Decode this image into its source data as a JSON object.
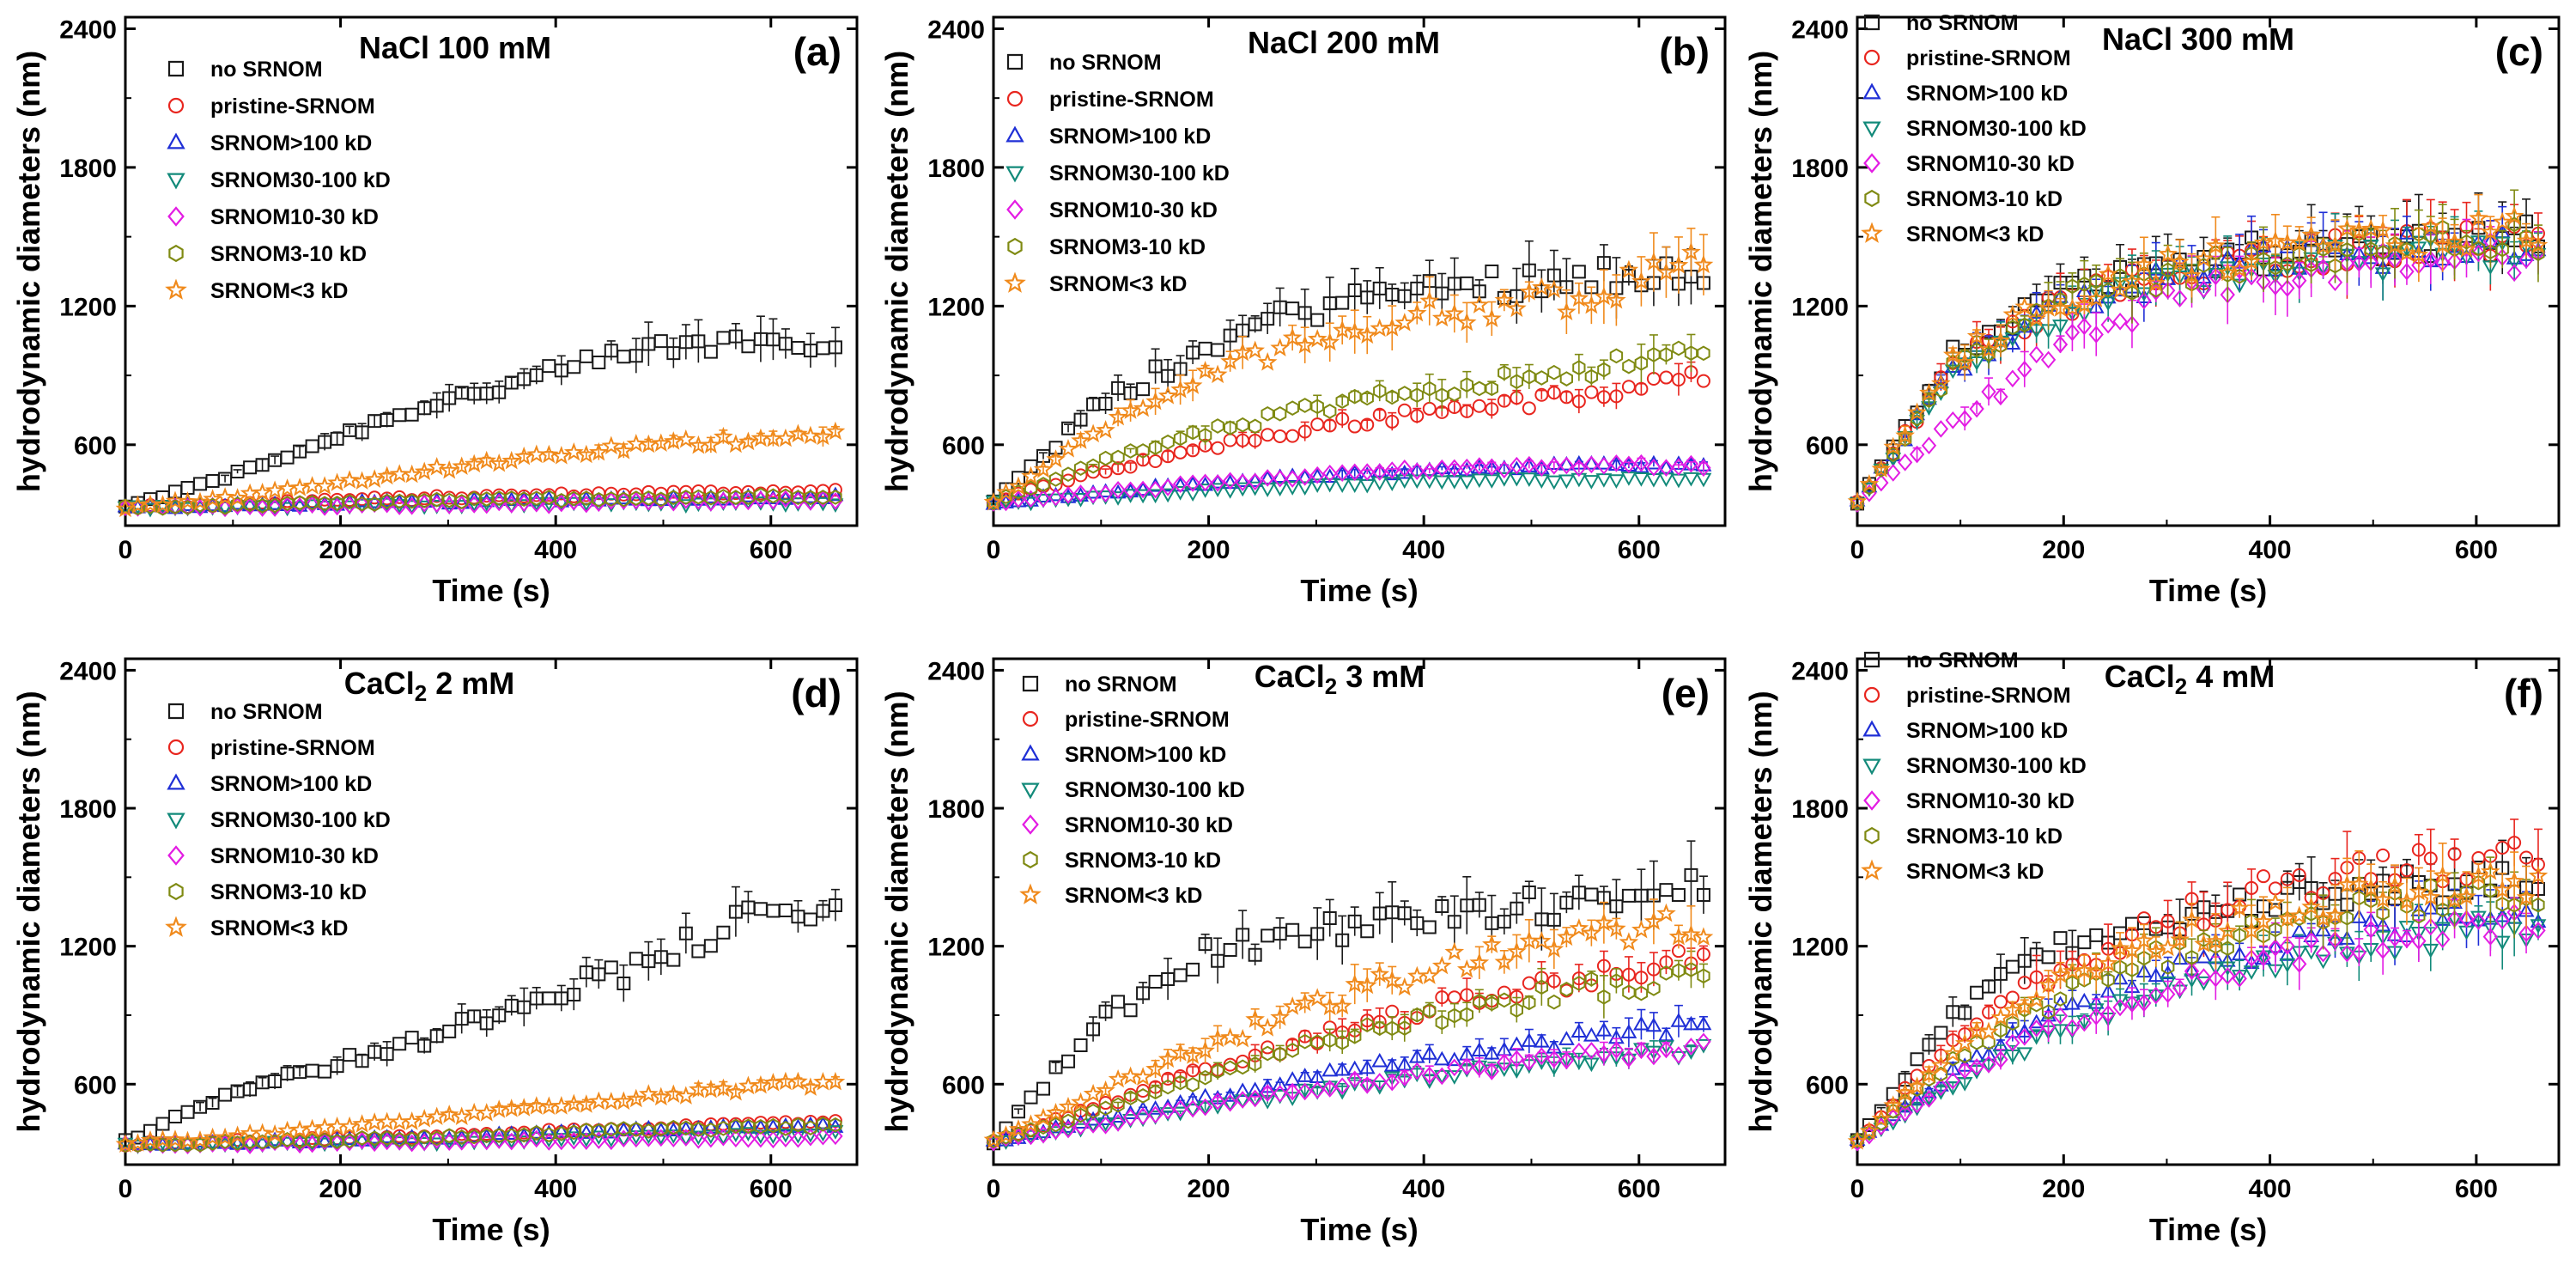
{
  "figure": {
    "series_styles": [
      {
        "name": "no SRNOM",
        "color": "#1a1a1a",
        "marker": "square"
      },
      {
        "name": "pristine-SRNOM",
        "color": "#e8261f",
        "marker": "circle"
      },
      {
        "name": "SRNOM>100 kD",
        "color": "#1f2fd6",
        "marker": "triangle-up"
      },
      {
        "name": "SRNOM30-100 kD",
        "color": "#128a7a",
        "marker": "triangle-down"
      },
      {
        "name": "SRNOM10-30 kD",
        "color": "#e31ce3",
        "marker": "diamond"
      },
      {
        "name": "SRNOM3-10 kD",
        "color": "#7f8a12",
        "marker": "hexagon"
      },
      {
        "name": "SRNOM<3 kD",
        "color": "#f08a1c",
        "marker": "star"
      }
    ]
  },
  "chart_data": [
    {
      "id": "a",
      "type": "scatter",
      "title": "NaCl 100 mM",
      "panel_label": "(a)",
      "xlabel": "Time (s)",
      "ylabel": "hydrodynamic diameters (nm)",
      "xlim": [
        0,
        680
      ],
      "ylim": [
        250,
        2450
      ],
      "xticks": [
        0,
        200,
        400,
        600
      ],
      "yticks": [
        600,
        1200,
        1800,
        2400
      ],
      "x_range": [
        0,
        660
      ],
      "series": [
        {
          "name": "no SRNOM",
          "values": [
            330,
            460,
            620,
            780,
            880,
            1000,
            1050,
            1060
          ],
          "start": 330
        },
        {
          "name": "pristine-SRNOM",
          "values": [
            330,
            340,
            360,
            370,
            380,
            390,
            395,
            400
          ],
          "start": 330
        },
        {
          "name": "SRNOM>100 kD",
          "values": [
            330,
            335,
            345,
            350,
            360,
            365,
            370,
            375
          ],
          "start": 330
        },
        {
          "name": "SRNOM30-100 kD",
          "values": [
            330,
            330,
            335,
            340,
            345,
            345,
            350,
            350
          ],
          "start": 330
        },
        {
          "name": "SRNOM10-30 kD",
          "values": [
            330,
            330,
            335,
            340,
            345,
            350,
            355,
            360
          ],
          "start": 330
        },
        {
          "name": "SRNOM3-10 kD",
          "values": [
            330,
            335,
            345,
            355,
            365,
            370,
            375,
            380
          ],
          "start": 330
        },
        {
          "name": "SRNOM<3 kD",
          "values": [
            330,
            370,
            430,
            490,
            540,
            590,
            620,
            660
          ],
          "start": 330
        }
      ]
    },
    {
      "id": "b",
      "type": "scatter",
      "title": "NaCl 200 mM",
      "panel_label": "(b)",
      "xlabel": "Time (s)",
      "ylabel": "hydrodynamic diameters (nm)",
      "xlim": [
        0,
        680
      ],
      "ylim": [
        250,
        2450
      ],
      "xticks": [
        0,
        200,
        400,
        600
      ],
      "yticks": [
        600,
        1200,
        1800,
        2400
      ],
      "x_range": [
        0,
        660
      ],
      "series": [
        {
          "name": "no SRNOM",
          "values": [
            350,
            760,
            1000,
            1180,
            1260,
            1300,
            1340,
            1360
          ],
          "start": 350
        },
        {
          "name": "pristine-SRNOM",
          "values": [
            350,
            480,
            580,
            660,
            730,
            780,
            810,
            900
          ],
          "start": 350
        },
        {
          "name": "SRNOM>100 kD",
          "values": [
            350,
            390,
            430,
            460,
            480,
            500,
            510,
            510
          ],
          "start": 350
        },
        {
          "name": "SRNOM30-100 kD",
          "values": [
            350,
            370,
            400,
            420,
            440,
            450,
            450,
            460
          ],
          "start": 350
        },
        {
          "name": "SRNOM10-30 kD",
          "values": [
            350,
            390,
            430,
            460,
            490,
            500,
            510,
            510
          ],
          "start": 350
        },
        {
          "name": "SRNOM3-10 kD",
          "values": [
            350,
            520,
            640,
            740,
            820,
            880,
            940,
            1000
          ],
          "start": 350
        },
        {
          "name": "SRNOM<3 kD",
          "values": [
            350,
            650,
            880,
            1050,
            1150,
            1200,
            1250,
            1420
          ],
          "start": 350
        }
      ]
    },
    {
      "id": "c",
      "type": "scatter",
      "title": "NaCl 300 mM",
      "panel_label": "(c)",
      "xlabel": "Time (s)",
      "ylabel": "hydrodynamic diameters (nm)",
      "xlim": [
        0,
        680
      ],
      "ylim": [
        250,
        2450
      ],
      "xticks": [
        0,
        200,
        400,
        600
      ],
      "yticks": [
        600,
        1200,
        1800,
        2400
      ],
      "x_range": [
        0,
        660
      ],
      "series": [
        {
          "name": "no SRNOM",
          "values": [
            350,
            1000,
            1250,
            1350,
            1420,
            1460,
            1490,
            1510
          ],
          "start": 350
        },
        {
          "name": "pristine-SRNOM",
          "values": [
            350,
            950,
            1200,
            1320,
            1400,
            1440,
            1480,
            1500
          ],
          "start": 350
        },
        {
          "name": "SRNOM>100 kD",
          "values": [
            350,
            930,
            1180,
            1300,
            1380,
            1420,
            1460,
            1480
          ],
          "start": 350
        },
        {
          "name": "SRNOM30-100 kD",
          "values": [
            350,
            900,
            1150,
            1280,
            1350,
            1400,
            1430,
            1450
          ],
          "start": 350
        },
        {
          "name": "SRNOM10-30 kD",
          "values": [
            350,
            700,
            1000,
            1200,
            1300,
            1360,
            1400,
            1420
          ],
          "start": 350
        },
        {
          "name": "SRNOM3-10 kD",
          "values": [
            350,
            950,
            1200,
            1320,
            1400,
            1440,
            1470,
            1490
          ],
          "start": 350
        },
        {
          "name": "SRNOM<3 kD",
          "values": [
            350,
            970,
            1220,
            1340,
            1420,
            1460,
            1500,
            1520
          ],
          "start": 350
        }
      ]
    },
    {
      "id": "d",
      "type": "scatter",
      "title": "CaCl2 2 mM",
      "title_main": "CaCl",
      "title_sub": "2",
      "title_rest": " 2 mM",
      "panel_label": "(d)",
      "xlabel": "Time (s)",
      "ylabel": "hydrodynamic diameters (nm)",
      "xlim": [
        0,
        680
      ],
      "ylim": [
        250,
        2450
      ],
      "xticks": [
        0,
        200,
        400,
        600
      ],
      "yticks": [
        600,
        1200,
        1800,
        2400
      ],
      "x_range": [
        0,
        660
      ],
      "series": [
        {
          "name": "no SRNOM",
          "values": [
            350,
            560,
            680,
            800,
            980,
            1100,
            1300,
            1350
          ],
          "start": 350
        },
        {
          "name": "pristine-SRNOM",
          "values": [
            340,
            350,
            360,
            370,
            390,
            410,
            420,
            440
          ],
          "start": 340
        },
        {
          "name": "SRNOM>100 kD",
          "values": [
            340,
            345,
            355,
            365,
            380,
            400,
            410,
            420
          ],
          "start": 340
        },
        {
          "name": "SRNOM30-100 kD",
          "values": [
            340,
            340,
            345,
            350,
            360,
            370,
            380,
            390
          ],
          "start": 340
        },
        {
          "name": "SRNOM10-30 kD",
          "values": [
            340,
            340,
            345,
            350,
            355,
            360,
            365,
            370
          ],
          "start": 340
        },
        {
          "name": "SRNOM3-10 kD",
          "values": [
            340,
            345,
            355,
            370,
            385,
            400,
            410,
            420
          ],
          "start": 340
        },
        {
          "name": "SRNOM<3 kD",
          "values": [
            340,
            370,
            410,
            450,
            500,
            540,
            580,
            610
          ],
          "start": 340
        }
      ]
    },
    {
      "id": "e",
      "type": "scatter",
      "title": "CaCl2 3 mM",
      "title_main": "CaCl",
      "title_sub": "2",
      "title_rest": " 3 mM",
      "panel_label": "(e)",
      "xlabel": "Time (s)",
      "ylabel": "hydrodynamic diameters (nm)",
      "xlim": [
        0,
        680
      ],
      "ylim": [
        250,
        2450
      ],
      "xticks": [
        0,
        200,
        400,
        600
      ],
      "yticks": [
        600,
        1200,
        1800,
        2400
      ],
      "x_range": [
        0,
        660
      ],
      "series": [
        {
          "name": "no SRNOM",
          "values": [
            350,
            850,
            1150,
            1250,
            1300,
            1350,
            1420,
            1450
          ],
          "start": 350
        },
        {
          "name": "pristine-SRNOM",
          "values": [
            350,
            500,
            650,
            780,
            900,
            1000,
            1080,
            1150
          ],
          "start": 350
        },
        {
          "name": "SRNOM>100 kD",
          "values": [
            350,
            440,
            530,
            620,
            690,
            750,
            810,
            860
          ],
          "start": 350
        },
        {
          "name": "SRNOM30-100 kD",
          "values": [
            350,
            420,
            490,
            560,
            620,
            670,
            720,
            750
          ],
          "start": 350
        },
        {
          "name": "SRNOM10-30 kD",
          "values": [
            350,
            420,
            500,
            570,
            630,
            680,
            730,
            760
          ],
          "start": 350
        },
        {
          "name": "SRNOM3-10 kD",
          "values": [
            350,
            480,
            620,
            750,
            860,
            950,
            1020,
            1080
          ],
          "start": 350
        },
        {
          "name": "SRNOM<3 kD",
          "values": [
            350,
            560,
            750,
            920,
            1060,
            1180,
            1250,
            1300
          ],
          "start": 350
        }
      ]
    },
    {
      "id": "f",
      "type": "scatter",
      "title": "CaCl2 4 mM",
      "title_main": "CaCl",
      "title_sub": "2",
      "title_rest": " 4 mM",
      "panel_label": "(f)",
      "xlabel": "Time (s)",
      "ylabel": "hydrodynamic diameters (nm)",
      "xlim": [
        0,
        680
      ],
      "ylim": [
        250,
        2450
      ],
      "xticks": [
        0,
        200,
        400,
        600
      ],
      "yticks": [
        600,
        1200,
        1800,
        2400
      ],
      "x_range": [
        0,
        660
      ],
      "series": [
        {
          "name": "no SRNOM",
          "values": [
            350,
            900,
            1200,
            1300,
            1380,
            1430,
            1460,
            1480
          ],
          "start": 350
        },
        {
          "name": "pristine-SRNOM",
          "values": [
            350,
            800,
            1080,
            1280,
            1420,
            1500,
            1550,
            1580
          ],
          "start": 350
        },
        {
          "name": "SRNOM>100 kD",
          "values": [
            350,
            650,
            900,
            1060,
            1180,
            1260,
            1320,
            1360
          ],
          "start": 350
        },
        {
          "name": "SRNOM30-100 kD",
          "values": [
            350,
            600,
            820,
            980,
            1100,
            1190,
            1250,
            1300
          ],
          "start": 350
        },
        {
          "name": "SRNOM10-30 kD",
          "values": [
            350,
            620,
            850,
            1000,
            1120,
            1200,
            1260,
            1300
          ],
          "start": 350
        },
        {
          "name": "SRNOM3-10 kD",
          "values": [
            350,
            700,
            960,
            1140,
            1260,
            1340,
            1400,
            1440
          ],
          "start": 350
        },
        {
          "name": "SRNOM<3 kD",
          "values": [
            350,
            760,
            1020,
            1200,
            1320,
            1400,
            1450,
            1480
          ],
          "start": 350
        }
      ]
    }
  ]
}
